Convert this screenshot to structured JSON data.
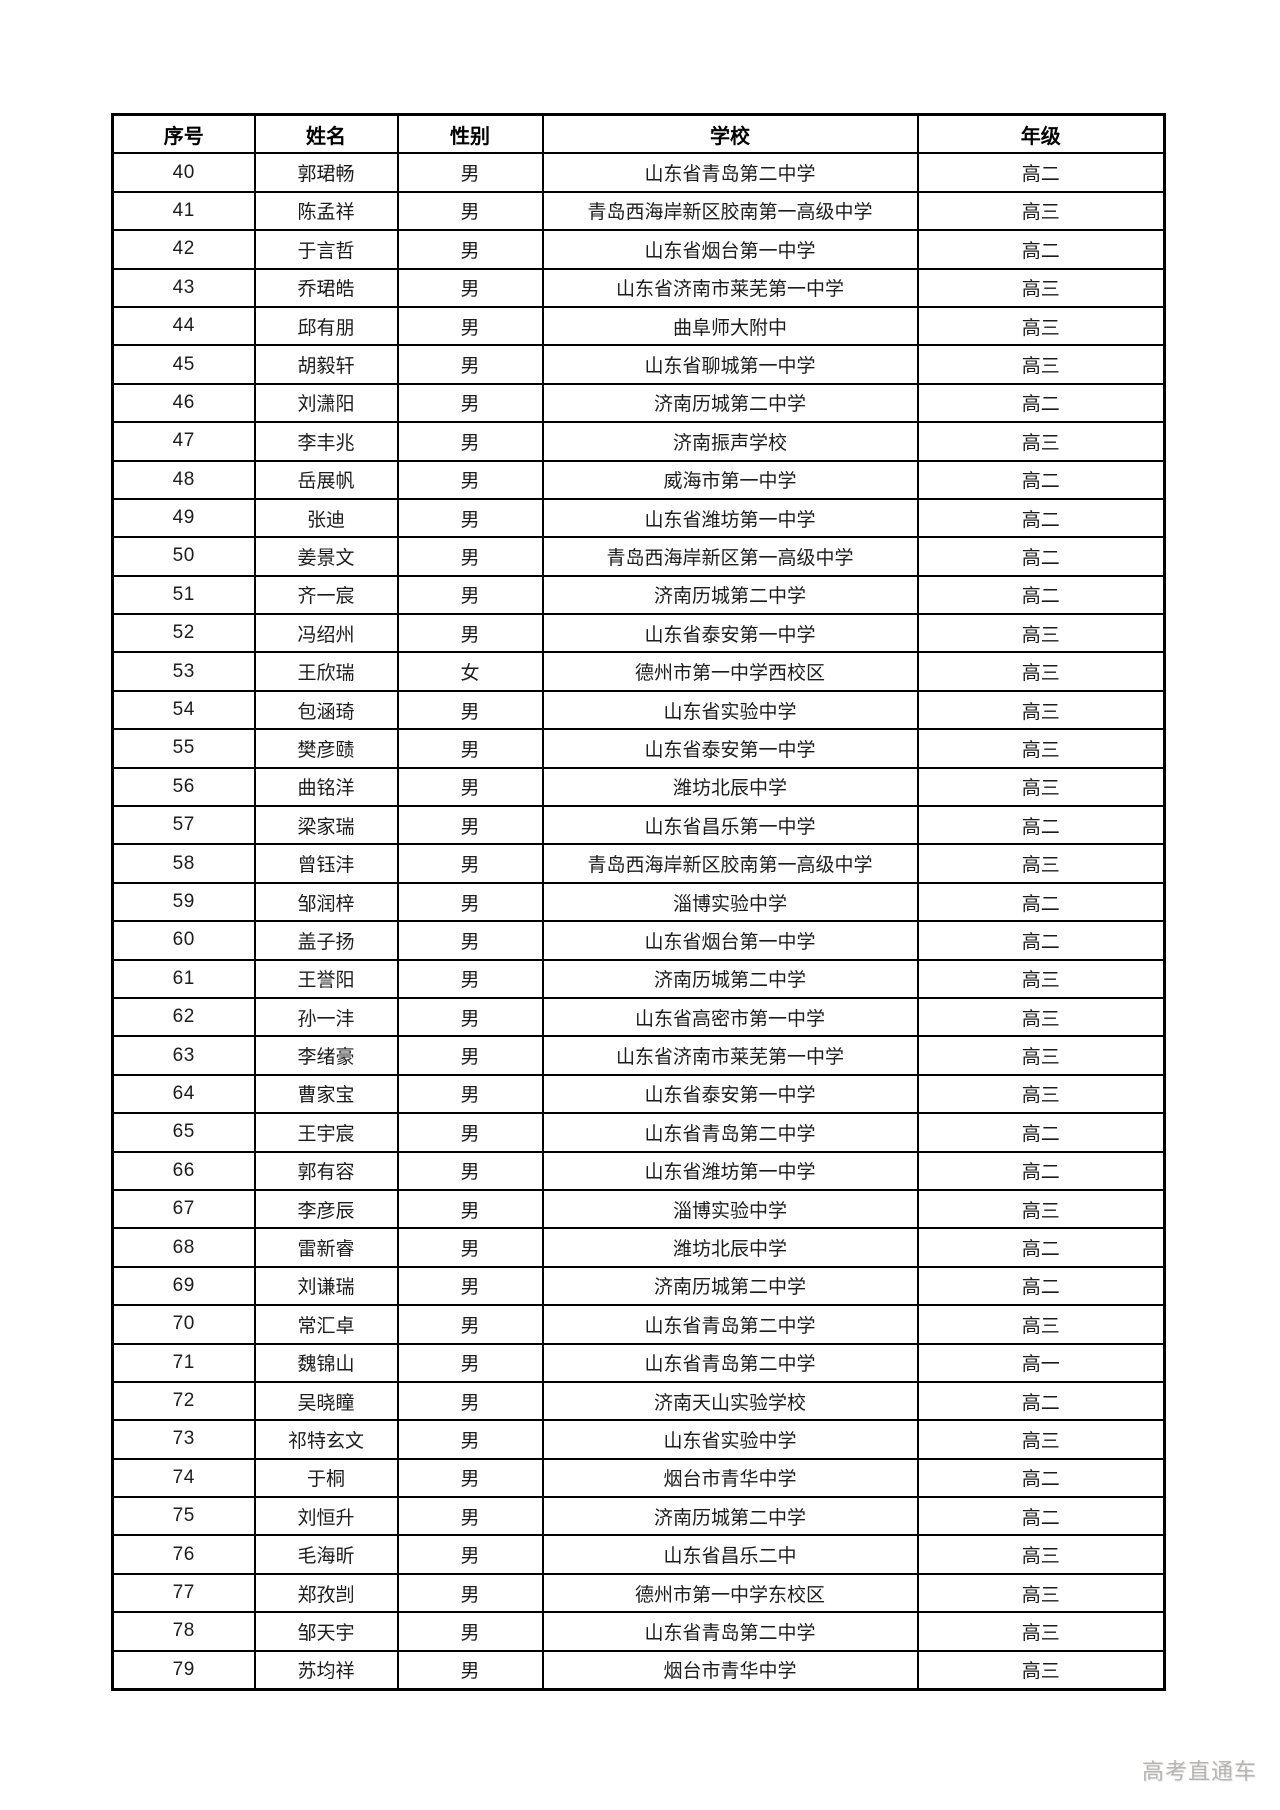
{
  "document": {
    "watermark": "高考直通车"
  },
  "table": {
    "headers": [
      "序号",
      "姓名",
      "性别",
      "学校",
      "年级"
    ],
    "rows": [
      {
        "no": "40",
        "name": "郭珺畅",
        "gender": "男",
        "school": "山东省青岛第二中学",
        "grade": "高二"
      },
      {
        "no": "41",
        "name": "陈孟祥",
        "gender": "男",
        "school": "青岛西海岸新区胶南第一高级中学",
        "grade": "高三"
      },
      {
        "no": "42",
        "name": "于言哲",
        "gender": "男",
        "school": "山东省烟台第一中学",
        "grade": "高二"
      },
      {
        "no": "43",
        "name": "乔珺皓",
        "gender": "男",
        "school": "山东省济南市莱芜第一中学",
        "grade": "高三"
      },
      {
        "no": "44",
        "name": "邱有朋",
        "gender": "男",
        "school": "曲阜师大附中",
        "grade": "高三"
      },
      {
        "no": "45",
        "name": "胡毅轩",
        "gender": "男",
        "school": "山东省聊城第一中学",
        "grade": "高三"
      },
      {
        "no": "46",
        "name": "刘潇阳",
        "gender": "男",
        "school": "济南历城第二中学",
        "grade": "高二"
      },
      {
        "no": "47",
        "name": "李丰兆",
        "gender": "男",
        "school": "济南振声学校",
        "grade": "高三"
      },
      {
        "no": "48",
        "name": "岳展帆",
        "gender": "男",
        "school": "威海市第一中学",
        "grade": "高二"
      },
      {
        "no": "49",
        "name": "张迪",
        "gender": "男",
        "school": "山东省潍坊第一中学",
        "grade": "高二"
      },
      {
        "no": "50",
        "name": "姜景文",
        "gender": "男",
        "school": "青岛西海岸新区第一高级中学",
        "grade": "高二"
      },
      {
        "no": "51",
        "name": "齐一宸",
        "gender": "男",
        "school": "济南历城第二中学",
        "grade": "高二"
      },
      {
        "no": "52",
        "name": "冯绍州",
        "gender": "男",
        "school": "山东省泰安第一中学",
        "grade": "高三"
      },
      {
        "no": "53",
        "name": "王欣瑞",
        "gender": "女",
        "school": "德州市第一中学西校区",
        "grade": "高三"
      },
      {
        "no": "54",
        "name": "包涵琦",
        "gender": "男",
        "school": "山东省实验中学",
        "grade": "高三"
      },
      {
        "no": "55",
        "name": "樊彦赜",
        "gender": "男",
        "school": "山东省泰安第一中学",
        "grade": "高三"
      },
      {
        "no": "56",
        "name": "曲铭洋",
        "gender": "男",
        "school": "潍坊北辰中学",
        "grade": "高三"
      },
      {
        "no": "57",
        "name": "梁家瑞",
        "gender": "男",
        "school": "山东省昌乐第一中学",
        "grade": "高二"
      },
      {
        "no": "58",
        "name": "曾钰沣",
        "gender": "男",
        "school": "青岛西海岸新区胶南第一高级中学",
        "grade": "高三"
      },
      {
        "no": "59",
        "name": "邹润梓",
        "gender": "男",
        "school": "淄博实验中学",
        "grade": "高二"
      },
      {
        "no": "60",
        "name": "盖子扬",
        "gender": "男",
        "school": "山东省烟台第一中学",
        "grade": "高二"
      },
      {
        "no": "61",
        "name": "王誉阳",
        "gender": "男",
        "school": "济南历城第二中学",
        "grade": "高三"
      },
      {
        "no": "62",
        "name": "孙一沣",
        "gender": "男",
        "school": "山东省高密市第一中学",
        "grade": "高三"
      },
      {
        "no": "63",
        "name": "李绪豪",
        "gender": "男",
        "school": "山东省济南市莱芜第一中学",
        "grade": "高三"
      },
      {
        "no": "64",
        "name": "曹家宝",
        "gender": "男",
        "school": "山东省泰安第一中学",
        "grade": "高三"
      },
      {
        "no": "65",
        "name": "王宇宸",
        "gender": "男",
        "school": "山东省青岛第二中学",
        "grade": "高二"
      },
      {
        "no": "66",
        "name": "郭有容",
        "gender": "男",
        "school": "山东省潍坊第一中学",
        "grade": "高二"
      },
      {
        "no": "67",
        "name": "李彦辰",
        "gender": "男",
        "school": "淄博实验中学",
        "grade": "高三"
      },
      {
        "no": "68",
        "name": "雷新睿",
        "gender": "男",
        "school": "潍坊北辰中学",
        "grade": "高二"
      },
      {
        "no": "69",
        "name": "刘谦瑞",
        "gender": "男",
        "school": "济南历城第二中学",
        "grade": "高二"
      },
      {
        "no": "70",
        "name": "常汇卓",
        "gender": "男",
        "school": "山东省青岛第二中学",
        "grade": "高三"
      },
      {
        "no": "71",
        "name": "魏锦山",
        "gender": "男",
        "school": "山东省青岛第二中学",
        "grade": "高一"
      },
      {
        "no": "72",
        "name": "吴晓瞳",
        "gender": "男",
        "school": "济南天山实验学校",
        "grade": "高二"
      },
      {
        "no": "73",
        "name": "祁特玄文",
        "gender": "男",
        "school": "山东省实验中学",
        "grade": "高三"
      },
      {
        "no": "74",
        "name": "于桐",
        "gender": "男",
        "school": "烟台市青华中学",
        "grade": "高二"
      },
      {
        "no": "75",
        "name": "刘恒升",
        "gender": "男",
        "school": "济南历城第二中学",
        "grade": "高二"
      },
      {
        "no": "76",
        "name": "毛海昕",
        "gender": "男",
        "school": "山东省昌乐二中",
        "grade": "高三"
      },
      {
        "no": "77",
        "name": "郑孜剀",
        "gender": "男",
        "school": "德州市第一中学东校区",
        "grade": "高三"
      },
      {
        "no": "78",
        "name": "邹天宇",
        "gender": "男",
        "school": "山东省青岛第二中学",
        "grade": "高三"
      },
      {
        "no": "79",
        "name": "苏均祥",
        "gender": "男",
        "school": "烟台市青华中学",
        "grade": "高三"
      }
    ]
  }
}
